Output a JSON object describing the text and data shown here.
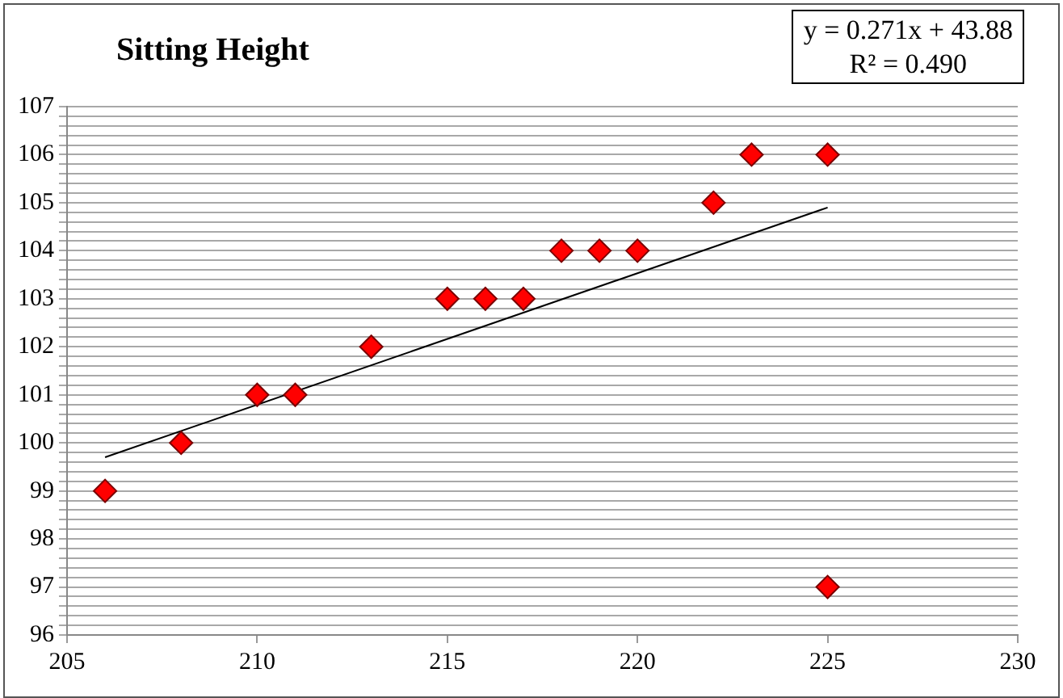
{
  "chart_data": {
    "type": "scatter",
    "title": "Sitting Height",
    "annotations": [
      "y = 0.271x + 43.88",
      "R² = 0.490"
    ],
    "marker": "diamond",
    "grid": "y",
    "legend": false,
    "xlim": [
      205,
      230
    ],
    "xticks": [
      205,
      210,
      215,
      220,
      225,
      230
    ],
    "ylim": [
      96,
      107
    ],
    "yticks": [
      96,
      {
        "value": 96.2,
        "label": null
      },
      {
        "value": 96.4,
        "label": null
      },
      {
        "value": 96.6,
        "label": null
      },
      {
        "value": 96.8,
        "label": null
      },
      97,
      {
        "value": 97.2,
        "label": null
      },
      {
        "value": 97.4,
        "label": null
      },
      {
        "value": 97.6,
        "label": null
      },
      {
        "value": 97.8,
        "label": null
      },
      98,
      {
        "value": 98.2,
        "label": null
      },
      {
        "value": 98.4,
        "label": null
      },
      {
        "value": 98.6,
        "label": null
      },
      {
        "value": 98.8,
        "label": null
      },
      99,
      {
        "value": 99.2,
        "label": null
      },
      {
        "value": 99.4,
        "label": null
      },
      {
        "value": 99.6,
        "label": null
      },
      {
        "value": 99.8,
        "label": null
      },
      100,
      {
        "value": 100.2,
        "label": null
      },
      {
        "value": 100.4,
        "label": null
      },
      {
        "value": 100.6,
        "label": null
      },
      {
        "value": 100.8,
        "label": null
      },
      101,
      {
        "value": 101.2,
        "label": null
      },
      {
        "value": 101.4,
        "label": null
      },
      {
        "value": 101.6,
        "label": null
      },
      {
        "value": 101.8,
        "label": null
      },
      102,
      {
        "value": 102.2,
        "label": null
      },
      {
        "value": 102.4,
        "label": null
      },
      {
        "value": 102.6,
        "label": null
      },
      {
        "value": 102.8,
        "label": null
      },
      103,
      {
        "value": 103.2,
        "label": null
      },
      {
        "value": 103.4,
        "label": null
      },
      {
        "value": 103.6,
        "label": null
      },
      {
        "value": 103.8,
        "label": null
      },
      104,
      {
        "value": 104.2,
        "label": null
      },
      {
        "value": 104.4,
        "label": null
      },
      {
        "value": 104.6,
        "label": null
      },
      {
        "value": 104.8,
        "label": null
      },
      105,
      {
        "value": 105.2,
        "label": null
      },
      {
        "value": 105.4,
        "label": null
      },
      {
        "value": 105.6,
        "label": null
      },
      {
        "value": 105.8,
        "label": null
      },
      106,
      {
        "value": 106.2,
        "label": null
      },
      {
        "value": 106.4,
        "label": null
      },
      {
        "value": 106.6,
        "label": null
      },
      {
        "value": 106.8,
        "label": null
      },
      107
    ],
    "series": [
      {
        "type": "scatter",
        "color": "#ff0000",
        "x": [
          206,
          208,
          210,
          211,
          213,
          215,
          216,
          217,
          218,
          219,
          220,
          222,
          223,
          225,
          225
        ],
        "values": [
          99,
          100,
          101,
          101,
          102,
          103,
          103,
          103,
          104,
          104,
          104,
          105,
          106,
          106,
          97
        ]
      },
      {
        "type": "line",
        "color": "#000000",
        "marker": "none",
        "x": [
          206,
          225
        ],
        "values": [
          99.7,
          104.9
        ]
      }
    ]
  }
}
